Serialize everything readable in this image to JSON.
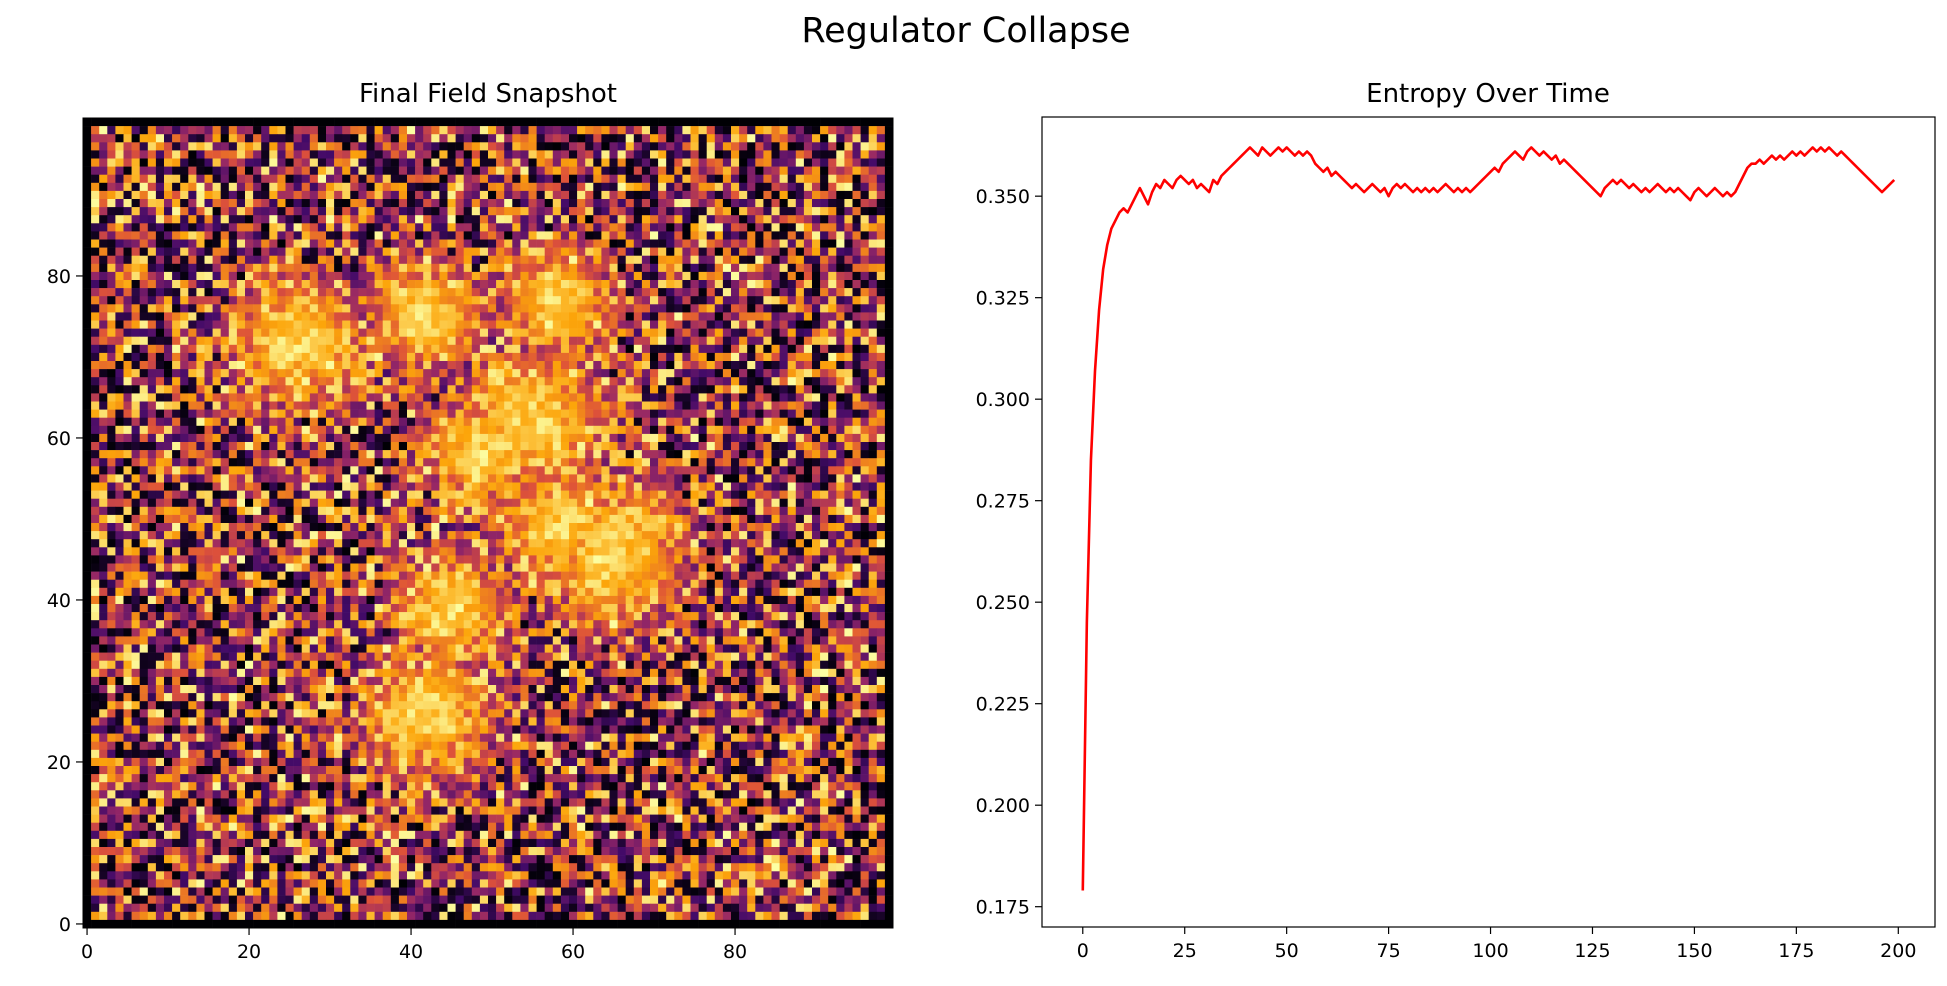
{
  "figure": {
    "title": "Regulator Collapse"
  },
  "chart_data": [
    {
      "type": "heatmap",
      "title": "Final Field Snapshot",
      "xlabel": "",
      "ylabel": "",
      "grid_size": [
        100,
        100
      ],
      "xlim": [
        -0.5,
        99.5
      ],
      "ylim": [
        99.5,
        -0.5
      ],
      "x_ticks": [
        0,
        20,
        40,
        60,
        80
      ],
      "y_ticks": [
        0,
        20,
        40,
        60,
        80
      ],
      "colormap": "inferno",
      "value_range": [
        0,
        1
      ],
      "colormap_stops": [
        "#000004",
        "#420a68",
        "#932667",
        "#dd513a",
        "#fca50a",
        "#fcffa4"
      ],
      "hot_regions": [
        {
          "cx": 26,
          "cy": 27,
          "r": 7
        },
        {
          "cx": 42,
          "cy": 24,
          "r": 6
        },
        {
          "cx": 58,
          "cy": 22,
          "r": 6
        },
        {
          "cx": 55,
          "cy": 37,
          "r": 8
        },
        {
          "cx": 49,
          "cy": 41,
          "r": 6
        },
        {
          "cx": 65,
          "cy": 53,
          "r": 8
        },
        {
          "cx": 58,
          "cy": 50,
          "r": 6
        },
        {
          "cx": 45,
          "cy": 60,
          "r": 6
        },
        {
          "cx": 42,
          "cy": 73,
          "r": 7
        }
      ],
      "border_color": "#000000"
    },
    {
      "type": "line",
      "title": "Entropy Over Time",
      "xlabel": "",
      "ylabel": "",
      "xlim": [
        -10,
        209
      ],
      "ylim": [
        0.17,
        0.3695
      ],
      "x_ticks": [
        0,
        25,
        50,
        75,
        100,
        125,
        150,
        175,
        200
      ],
      "y_ticks": [
        0.175,
        0.2,
        0.225,
        0.25,
        0.275,
        0.3,
        0.325,
        0.35
      ],
      "y_tick_labels": [
        "0.175",
        "0.200",
        "0.225",
        "0.250",
        "0.275",
        "0.300",
        "0.325",
        "0.350"
      ],
      "grid": false,
      "line_color": "#ff0000",
      "series": [
        {
          "x_start": 0,
          "x_step": 1,
          "values": [
            0.179,
            0.245,
            0.285,
            0.307,
            0.322,
            0.332,
            0.338,
            0.342,
            0.344,
            0.346,
            0.347,
            0.346,
            0.348,
            0.35,
            0.352,
            0.35,
            0.348,
            0.351,
            0.353,
            0.352,
            0.354,
            0.353,
            0.352,
            0.354,
            0.355,
            0.354,
            0.353,
            0.354,
            0.352,
            0.353,
            0.352,
            0.351,
            0.354,
            0.353,
            0.355,
            0.356,
            0.357,
            0.358,
            0.359,
            0.36,
            0.361,
            0.362,
            0.361,
            0.36,
            0.362,
            0.361,
            0.36,
            0.361,
            0.362,
            0.361,
            0.362,
            0.361,
            0.36,
            0.361,
            0.36,
            0.361,
            0.36,
            0.358,
            0.357,
            0.356,
            0.357,
            0.355,
            0.356,
            0.355,
            0.354,
            0.353,
            0.352,
            0.353,
            0.352,
            0.351,
            0.352,
            0.353,
            0.352,
            0.351,
            0.352,
            0.35,
            0.352,
            0.353,
            0.352,
            0.353,
            0.352,
            0.351,
            0.352,
            0.351,
            0.352,
            0.351,
            0.352,
            0.351,
            0.352,
            0.353,
            0.352,
            0.351,
            0.352,
            0.351,
            0.352,
            0.351,
            0.352,
            0.353,
            0.354,
            0.355,
            0.356,
            0.357,
            0.356,
            0.358,
            0.359,
            0.36,
            0.361,
            0.36,
            0.359,
            0.361,
            0.362,
            0.361,
            0.36,
            0.361,
            0.36,
            0.359,
            0.36,
            0.358,
            0.359,
            0.358,
            0.357,
            0.356,
            0.355,
            0.354,
            0.353,
            0.352,
            0.351,
            0.35,
            0.352,
            0.353,
            0.354,
            0.353,
            0.354,
            0.353,
            0.352,
            0.353,
            0.352,
            0.351,
            0.352,
            0.351,
            0.352,
            0.353,
            0.352,
            0.351,
            0.352,
            0.351,
            0.352,
            0.351,
            0.35,
            0.349,
            0.351,
            0.352,
            0.351,
            0.35,
            0.351,
            0.352,
            0.351,
            0.35,
            0.351,
            0.35,
            0.351,
            0.353,
            0.355,
            0.357,
            0.358,
            0.358,
            0.359,
            0.358,
            0.359,
            0.36,
            0.359,
            0.36,
            0.359,
            0.36,
            0.361,
            0.36,
            0.361,
            0.36,
            0.361,
            0.362,
            0.361,
            0.362,
            0.361,
            0.362,
            0.361,
            0.36,
            0.361,
            0.36,
            0.359,
            0.358,
            0.357,
            0.356,
            0.355,
            0.354,
            0.353,
            0.352,
            0.351,
            0.352,
            0.353,
            0.354
          ]
        }
      ]
    }
  ]
}
